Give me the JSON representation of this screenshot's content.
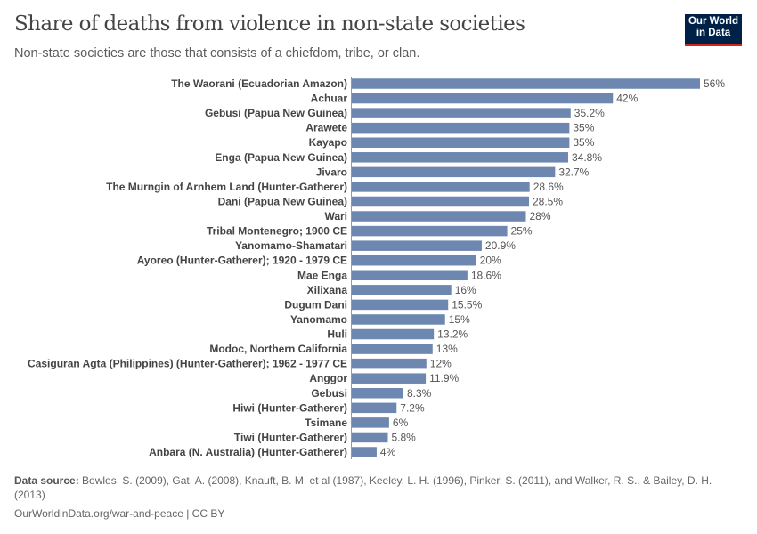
{
  "header": {
    "title": "Share of deaths from violence in non-state societies",
    "subtitle": "Non-state societies are those that consists of a chiefdom, tribe, or clan.",
    "logo": "Our World in Data",
    "logo_line1": "Our World",
    "logo_line2": "in Data"
  },
  "footer": {
    "source_label": "Data source:",
    "source_text": "Bowles, S. (2009), Gat, A. (2008), Knauft, B. M. et al (1987), Keeley, L. H. (1996), Pinker, S. (2011), and Walker, R. S., & Bailey, D. H. (2013)",
    "url": "OurWorldinData.org/war-and-peace | CC BY"
  },
  "chart_data": {
    "type": "bar",
    "orientation": "horizontal",
    "unit": "%",
    "bar_color": "#6d87b0",
    "xlim": [
      0,
      56
    ],
    "grid": false,
    "categories": [
      "The Waorani (Ecuadorian Amazon)",
      "Achuar",
      "Gebusi (Papua New Guinea)",
      "Arawete",
      "Kayapo",
      "Enga (Papua New Guinea)",
      "Jivaro",
      "The Murngin of Arnhem Land (Hunter-Gatherer)",
      "Dani (Papua New Guinea)",
      "Wari",
      "Tribal Montenegro; 1900 CE",
      "Yanomamo-Shamatari",
      "Ayoreo (Hunter-Gatherer); 1920 - 1979 CE",
      "Mae Enga",
      "Xilixana",
      "Dugum Dani",
      "Yanomamo",
      "Huli",
      "Modoc, Northern California",
      "Casiguran Agta (Philippines) (Hunter-Gatherer); 1962 - 1977 CE",
      "Anggor",
      "Gebusi",
      "Hiwi (Hunter-Gatherer)",
      "Tsimane",
      "Tiwi (Hunter-Gatherer)",
      "Anbara (N. Australia) (Hunter-Gatherer)"
    ],
    "values": [
      56,
      42,
      35.2,
      35,
      35,
      34.8,
      32.7,
      28.6,
      28.5,
      28,
      25,
      20.9,
      20,
      18.6,
      16,
      15.5,
      15,
      13.2,
      13,
      12,
      11.9,
      8.3,
      7.2,
      6,
      5.8,
      4
    ],
    "labels": [
      "56%",
      "42%",
      "35.2%",
      "35%",
      "35%",
      "34.8%",
      "32.7%",
      "28.6%",
      "28.5%",
      "28%",
      "25%",
      "20.9%",
      "20%",
      "18.6%",
      "16%",
      "15.5%",
      "15%",
      "13.2%",
      "13%",
      "12%",
      "11.9%",
      "8.3%",
      "7.2%",
      "6%",
      "5.8%",
      "4%"
    ]
  }
}
